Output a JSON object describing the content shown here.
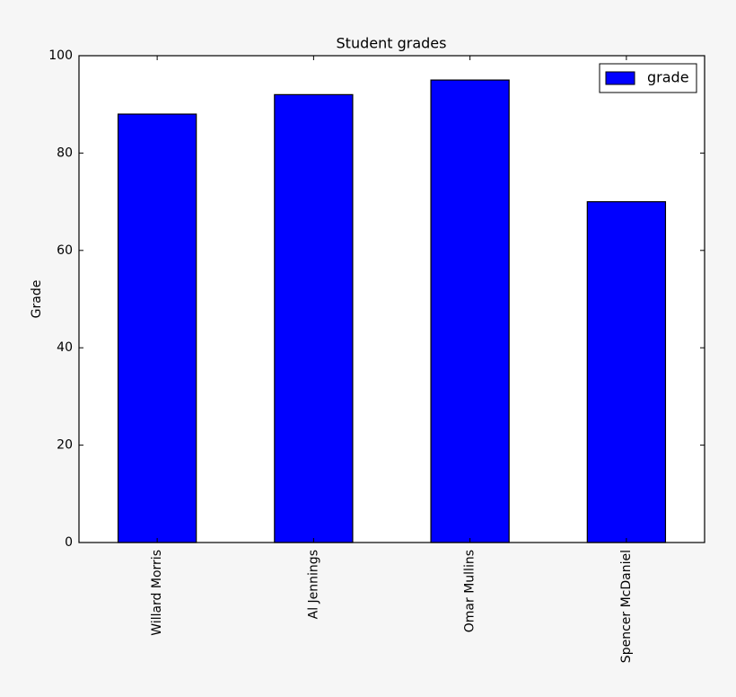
{
  "chart_data": {
    "type": "bar",
    "title": "Student grades",
    "y_label": "Grade",
    "categories": [
      "Willard Morris",
      "Al Jennings",
      "Omar Mullins",
      "Spencer McDaniel"
    ],
    "series": [
      {
        "name": "grade",
        "color": "#0000ff",
        "values": [
          88,
          92,
          95,
          70
        ]
      }
    ],
    "ylim": [
      0,
      100
    ],
    "yticks": [
      0,
      20,
      40,
      60,
      80,
      100
    ],
    "grid": false,
    "legend": "upper right"
  }
}
